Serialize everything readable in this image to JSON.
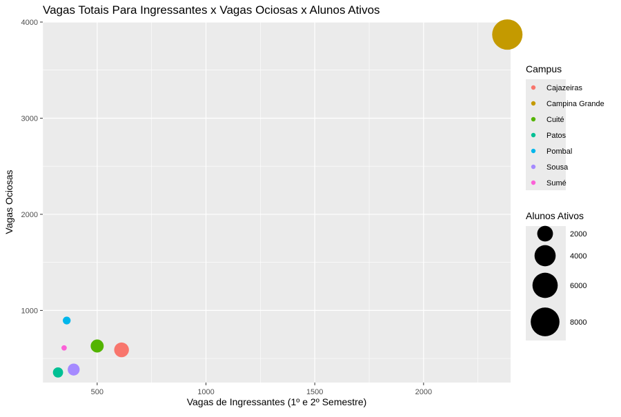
{
  "chart_data": {
    "type": "scatter",
    "title": "Vagas Totais Para Ingressantes x Vagas Ociosas x Alunos Ativos",
    "xlabel": "Vagas de Ingressantes (1º e 2º Semestre)",
    "ylabel": "Vagas Ociosas",
    "xlim": [
      250,
      2400
    ],
    "ylim": [
      250,
      4000
    ],
    "x_ticks": [
      500,
      1000,
      1500,
      2000
    ],
    "y_ticks": [
      1000,
      2000,
      3000,
      4000
    ],
    "x_tick_labels": [
      "500",
      "1000",
      "1500",
      "2000"
    ],
    "y_tick_labels": [
      "1000",
      "2000",
      "3000",
      "4000"
    ],
    "grid": true,
    "points": [
      {
        "campus": "Cajazeiras",
        "x": 612,
        "y": 590,
        "alunos_ativos": 1700,
        "color": "#F8766D"
      },
      {
        "campus": "Campina Grande",
        "x": 2385,
        "y": 3870,
        "alunos_ativos": 9000,
        "color": "#C49A00"
      },
      {
        "campus": "Cuité",
        "x": 500,
        "y": 630,
        "alunos_ativos": 1250,
        "color": "#53B400"
      },
      {
        "campus": "Patos",
        "x": 320,
        "y": 355,
        "alunos_ativos": 650,
        "color": "#00C094"
      },
      {
        "campus": "Pombal",
        "x": 360,
        "y": 895,
        "alunos_ativos": 300,
        "color": "#00B6EB"
      },
      {
        "campus": "Sousa",
        "x": 392,
        "y": 385,
        "alunos_ativos": 1000,
        "color": "#A58AFF"
      },
      {
        "campus": "Sumé",
        "x": 348,
        "y": 610,
        "alunos_ativos": 80,
        "color": "#FB61D7"
      }
    ],
    "legend_color": {
      "title": "Campus",
      "entries": [
        {
          "label": "Cajazeiras",
          "color": "#F8766D"
        },
        {
          "label": "Campina Grande",
          "color": "#C49A00"
        },
        {
          "label": "Cuité",
          "color": "#53B400"
        },
        {
          "label": "Patos",
          "color": "#00C094"
        },
        {
          "label": "Pombal",
          "color": "#00B6EB"
        },
        {
          "label": "Sousa",
          "color": "#A58AFF"
        },
        {
          "label": "Sumé",
          "color": "#FB61D7"
        }
      ]
    },
    "legend_size": {
      "title": "Alunos Ativos",
      "entries": [
        {
          "label": "2000",
          "value": 2000
        },
        {
          "label": "4000",
          "value": 4000
        },
        {
          "label": "6000",
          "value": 6000
        },
        {
          "label": "8000",
          "value": 8000
        }
      ]
    },
    "legend_placement": "right",
    "colors": {
      "panel": "#EBEBEB",
      "grid": "#FFFFFF",
      "text": "#000000",
      "tick_text": "#4D4D4D"
    }
  }
}
